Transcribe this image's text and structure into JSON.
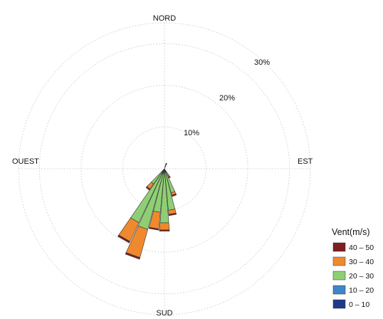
{
  "chart_data": {
    "type": "windrose",
    "directions": {
      "north": "NORD",
      "east": "EST",
      "south": "SUD",
      "west": "OUEST"
    },
    "ring_labels": [
      "10%",
      "20%",
      "30%"
    ],
    "ring_values": [
      10,
      20,
      30
    ],
    "max_percent": 35,
    "unit": "%",
    "legend_title": "Vent(m/s)",
    "bins": [
      {
        "label": "40 – 50",
        "color": "#7f1f1f"
      },
      {
        "label": "30 – 40",
        "color": "#f0892e"
      },
      {
        "label": "20 – 30",
        "color": "#8fcf73"
      },
      {
        "label": "10 – 20",
        "color": "#3f86c8"
      },
      {
        "label": "0 – 10",
        "color": "#1d3a8a"
      }
    ],
    "sectors": [
      {
        "direction_deg": 150,
        "segments": [
          0.3,
          0.4,
          1.8,
          0.0,
          0.0
        ]
      },
      {
        "direction_deg": 160,
        "segments": [
          0.3,
          0.6,
          6.0,
          0.0,
          0.0
        ]
      },
      {
        "direction_deg": 170,
        "segments": [
          0.3,
          1.0,
          10.0,
          0.0,
          0.0
        ]
      },
      {
        "direction_deg": 180,
        "segments": [
          0.3,
          1.7,
          13.0,
          0.0,
          0.0
        ]
      },
      {
        "direction_deg": 190,
        "segments": [
          0.3,
          4.0,
          10.5,
          0.0,
          0.0
        ]
      },
      {
        "direction_deg": 200,
        "segments": [
          0.4,
          7.0,
          13.7,
          1.4,
          0.0
        ]
      },
      {
        "direction_deg": 210,
        "segments": [
          0.4,
          5.0,
          13.0,
          1.3,
          0.0
        ]
      },
      {
        "direction_deg": 220,
        "segments": [
          0.3,
          1.5,
          3.5,
          1.0,
          0.0
        ]
      },
      {
        "direction_deg": 20,
        "segments": [
          0.3,
          0.5,
          0.2,
          0.0,
          0.4
        ]
      }
    ]
  }
}
